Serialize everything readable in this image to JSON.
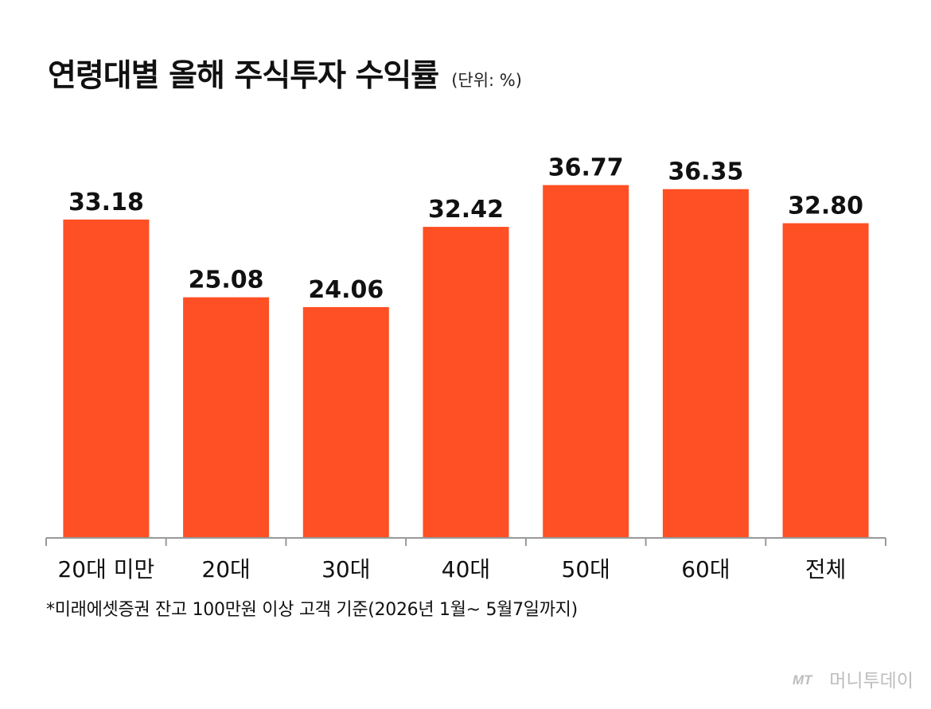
{
  "header": {
    "title": "연령대별 올해 주식투자 수익률",
    "unit": "(단위: %)"
  },
  "chart_data": {
    "type": "bar",
    "title": "연령대별 올해 주식투자 수익률",
    "unit": "(단위: %)",
    "categories": [
      "20대 미만",
      "20대",
      "30대",
      "40대",
      "50대",
      "60대",
      "전체"
    ],
    "values": [
      33.18,
      25.08,
      24.06,
      32.42,
      36.77,
      36.35,
      32.8
    ],
    "value_labels": [
      "33.18",
      "25.08",
      "24.06",
      "32.42",
      "36.77",
      "36.35",
      "32.80"
    ],
    "ylim": [
      0,
      40
    ],
    "grid": false,
    "legend": "none",
    "bar_color": "#ff4f24",
    "axis_color": "#999999"
  },
  "footnote": "*미래에셋증권 잔고 100만원 이상 고객 기준(2026년 1월~ 5월7일까지)",
  "credit": {
    "logo_text": "MT",
    "text": "머니투데이"
  }
}
